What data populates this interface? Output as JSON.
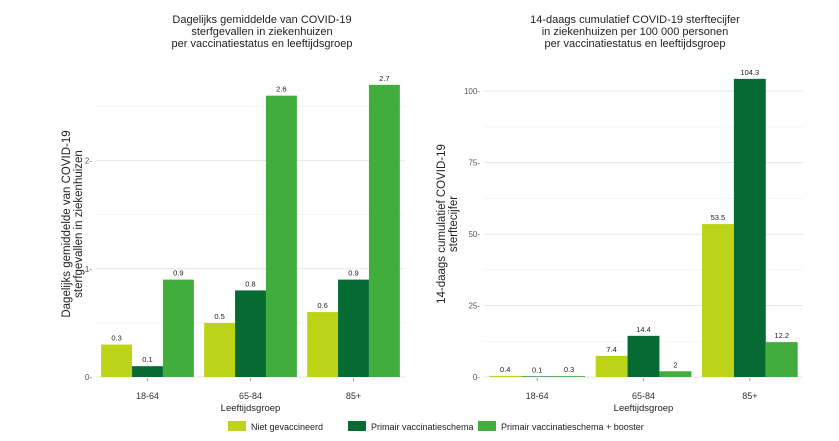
{
  "colors": {
    "Niet gevaccineerd": "#bdd317",
    "Primair vaccinatieschema": "#066a33",
    "Primair vaccinatieschema + booster": "#40ad3c"
  },
  "legend": [
    "Niet gevaccineerd",
    "Primair vaccinatieschema",
    "Primair vaccinatieschema + booster"
  ],
  "chart_data": [
    {
      "type": "bar",
      "title": [
        "Dagelijks gemiddelde van COVID-19",
        "sterfgevallen in ziekenhuizen",
        "per vaccinatiestatus en leeftijdsgroep"
      ],
      "ylabel": [
        "Dagelijks gemiddelde van COVID-19",
        "sterfgevallen in ziekenhuizen"
      ],
      "xlabel": "Leeftijdsgroep",
      "categories": [
        "18-64",
        "65-84",
        "85+"
      ],
      "ylim": [
        0,
        2.8
      ],
      "yticks": [
        0,
        1,
        2
      ],
      "series": [
        {
          "name": "Niet gevaccineerd",
          "values": [
            0.3,
            0.5,
            0.6
          ],
          "labels": [
            "0.3",
            "0.5",
            "0.6"
          ]
        },
        {
          "name": "Primair vaccinatieschema",
          "values": [
            0.1,
            0.8,
            0.9
          ],
          "labels": [
            "0.1",
            "0.8",
            "0.9"
          ]
        },
        {
          "name": "Primair vaccinatieschema + booster",
          "values": [
            0.9,
            2.6,
            2.7
          ],
          "labels": [
            "0.9",
            "2.6",
            "2.7"
          ]
        }
      ],
      "grid": true,
      "legend_position": "bottom"
    },
    {
      "type": "bar",
      "title": [
        "14-daags cumulatief COVID-19 sterftecijfer",
        "in ziekenhuizen per 100 000 personen",
        "per vaccinatiestatus en leeftijdsgroep"
      ],
      "ylabel": [
        "14-daags cumulatief COVID-19",
        "sterftecijfer"
      ],
      "xlabel": "Leeftijdsgroep",
      "categories": [
        "18-64",
        "65-84",
        "85+"
      ],
      "ylim": [
        0,
        106
      ],
      "yticks": [
        0,
        25,
        50,
        75,
        100
      ],
      "series": [
        {
          "name": "Niet gevaccineerd",
          "values": [
            0.4,
            7.4,
            53.5
          ],
          "labels": [
            "0.4",
            "7.4",
            "53.5"
          ]
        },
        {
          "name": "Primair vaccinatieschema",
          "values": [
            0.1,
            14.4,
            104.3
          ],
          "labels": [
            "0.1",
            "14.4",
            "104.3"
          ]
        },
        {
          "name": "Primair vaccinatieschema + booster",
          "values": [
            0.3,
            2,
            12.2
          ],
          "labels": [
            "0.3",
            "2",
            "12.2"
          ]
        }
      ],
      "grid": true,
      "legend_position": "bottom"
    }
  ]
}
